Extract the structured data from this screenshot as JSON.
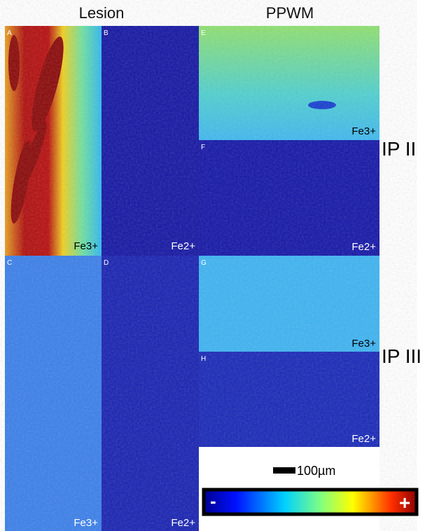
{
  "headers": [
    "Lesion",
    "PPWM"
  ],
  "panels": [
    {
      "letter": "A",
      "ion": "Fe3+"
    },
    {
      "letter": "B",
      "ion": "Fe2+"
    },
    {
      "letter": "C",
      "ion": "Fe3+"
    },
    {
      "letter": "D",
      "ion": "Fe2+"
    },
    {
      "letter": "E",
      "ion": "Fe3+"
    },
    {
      "letter": "F",
      "ion": "Fe2+"
    },
    {
      "letter": "G",
      "ion": "Fe3+"
    },
    {
      "letter": "H",
      "ion": "Fe2+"
    }
  ],
  "groups": [
    "IP II",
    "IP III"
  ],
  "scale_bar": "100µm",
  "colorbar": {
    "min": "-",
    "max": "+"
  }
}
